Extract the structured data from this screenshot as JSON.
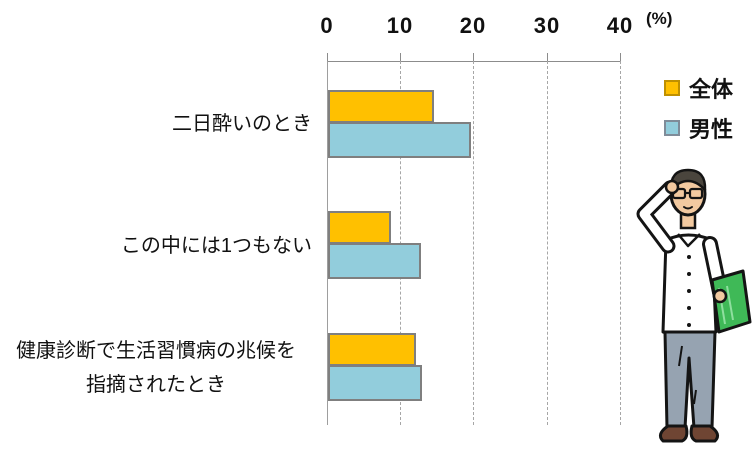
{
  "chart_data": {
    "type": "bar",
    "orientation": "horizontal",
    "title": "",
    "unit": "(%)",
    "xlim": [
      0,
      40
    ],
    "axis_ticks": [
      "0",
      "10",
      "20",
      "30",
      "40"
    ],
    "grid": "dashed vertical gridlines at 10,20,30,40",
    "legend_position": "top-right",
    "categories": [
      "二日酔いのとき",
      "この中には1つもない",
      "健康診断で生活習慣病の兆候を指摘されたとき"
    ],
    "categories_display": [
      [
        "二日酔いのとき"
      ],
      [
        "この中には1つもない"
      ],
      [
        "健康診断で生活習慣病の兆候を",
        "指摘されたとき"
      ]
    ],
    "series": [
      {
        "name": "全体",
        "color": "#FFC000",
        "values": [
          14.5,
          8.6,
          12.0
        ]
      },
      {
        "name": "男性",
        "color": "#92CDDC",
        "values": [
          19.5,
          12.7,
          12.8
        ]
      }
    ]
  },
  "illustration": {
    "description": "man with glasses saluting, holding green book"
  }
}
